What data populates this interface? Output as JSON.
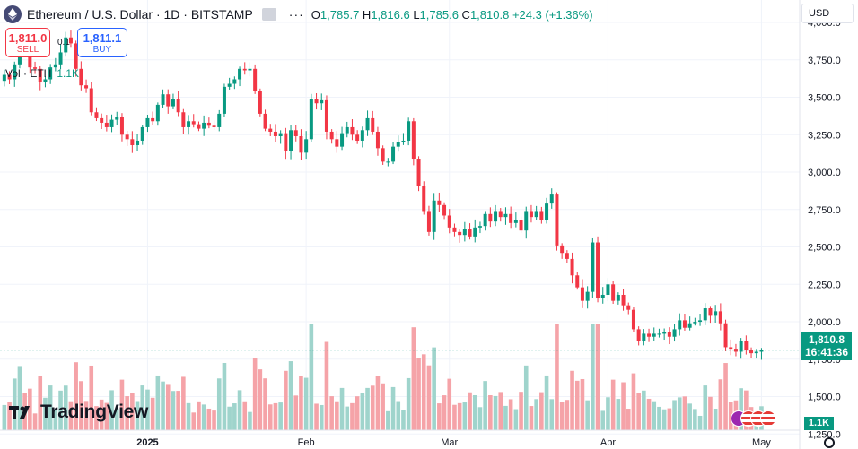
{
  "header": {
    "title": "Ethereum / U.S. Dollar · 1D · BITSTAMP",
    "ohlc_open_label": "O",
    "ohlc_open": "1,785.7",
    "ohlc_high_label": "H",
    "ohlc_high": "1,816.6",
    "ohlc_low_label": "L",
    "ohlc_low": "1,785.6",
    "ohlc_close_label": "C",
    "ohlc_close": "1,810.8",
    "change": "+24.3 (+1.36%)",
    "more_icon": "more-horizontal-icon"
  },
  "trade": {
    "sell_price": "1,811.0",
    "sell_label": "SELL",
    "spread": "0.1",
    "buy_price": "1,811.1",
    "buy_label": "BUY"
  },
  "volume_legend": {
    "label": "Vol · ETH",
    "value": "1.1K"
  },
  "currency": "USD",
  "price_tag": {
    "price": "1,810.8",
    "countdown": "16:41:36"
  },
  "volume_tag": "1.1K",
  "brand": "TradingView",
  "colors": {
    "up": "#089981",
    "down": "#f23645",
    "up_vol": "#9fd4cc",
    "down_vol": "#f5a3a8",
    "grid": "#f0f3fa"
  },
  "chart_data": {
    "type": "candlestick",
    "title": "Ethereum / U.S. Dollar · 1D · BITSTAMP",
    "x_ticks": [
      "2025",
      "Feb",
      "Mar",
      "Apr",
      "May"
    ],
    "y_ticks": [
      "4,000.0",
      "3,750.0",
      "3,500.0",
      "3,250.0",
      "3,000.0",
      "2,750.0",
      "2,500.0",
      "2,250.0",
      "2,000.0",
      "1,750.0",
      "1,500.0",
      "1,250.0"
    ],
    "y_tick_values": [
      4000,
      3750,
      3500,
      3250,
      3000,
      2750,
      2500,
      2250,
      2000,
      1750,
      1500,
      1250
    ],
    "ylim": [
      1150,
      4150
    ],
    "tick_day_index": [
      28,
      59,
      87,
      118,
      148
    ],
    "last_price": 1810.8,
    "axis_side": "right",
    "grid": true,
    "closes": [
      3650,
      3620,
      3720,
      3850,
      3790,
      3700,
      3690,
      3600,
      3620,
      3700,
      3720,
      3800,
      3900,
      3860,
      3690,
      3580,
      3560,
      3400,
      3360,
      3330,
      3300,
      3350,
      3370,
      3250,
      3220,
      3180,
      3210,
      3300,
      3360,
      3340,
      3450,
      3520,
      3440,
      3490,
      3400,
      3300,
      3340,
      3320,
      3290,
      3330,
      3310,
      3300,
      3390,
      3570,
      3590,
      3620,
      3690,
      3680,
      3690,
      3540,
      3390,
      3290,
      3270,
      3240,
      3260,
      3140,
      3280,
      3240,
      3130,
      3220,
      3490,
      3460,
      3480,
      3270,
      3220,
      3170,
      3260,
      3300,
      3250,
      3210,
      3280,
      3360,
      3270,
      3160,
      3070,
      3070,
      3170,
      3200,
      3210,
      3340,
      3090,
      2910,
      2740,
      2600,
      2810,
      2780,
      2710,
      2630,
      2600,
      2580,
      2620,
      2570,
      2630,
      2640,
      2720,
      2670,
      2740,
      2700,
      2720,
      2660,
      2680,
      2610,
      2740,
      2700,
      2740,
      2680,
      2790,
      2850,
      2510,
      2460,
      2420,
      2310,
      2230,
      2140,
      2200,
      2530,
      2160,
      2180,
      2250,
      2140,
      2180,
      2110,
      2080,
      1950,
      1870,
      1920,
      1900,
      1920,
      1920,
      1930,
      1900,
      1950,
      2010,
      1960,
      1990,
      2000,
      2010,
      2090,
      2040,
      2070,
      1990,
      1830,
      1820,
      1800,
      1870,
      1810,
      1790,
      1800,
      1810
    ]
  }
}
